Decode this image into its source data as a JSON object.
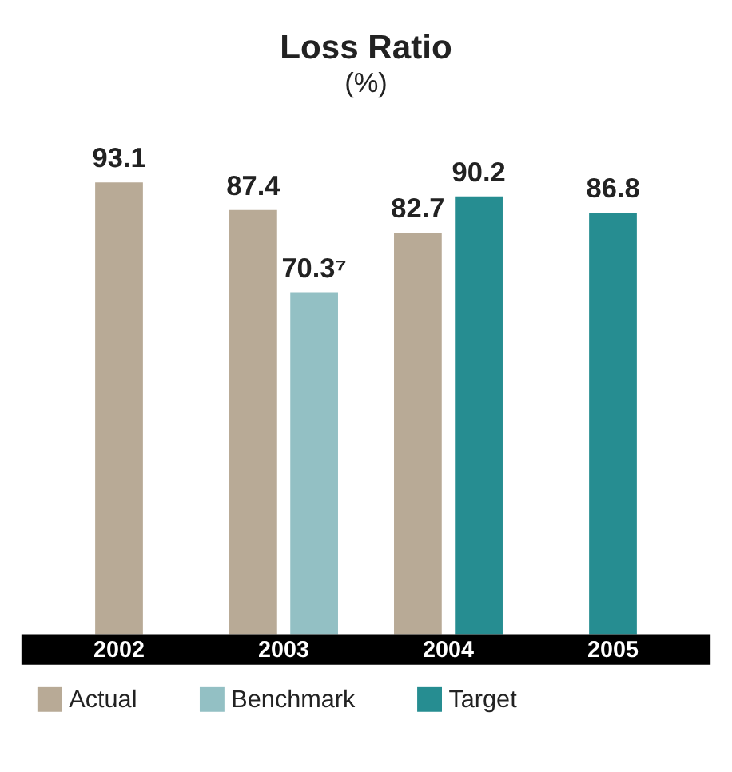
{
  "chart_data": {
    "type": "bar",
    "title": "Loss Ratio",
    "subtitle": "(%)",
    "categories": [
      "2002",
      "2003",
      "2004",
      "2005"
    ],
    "series": [
      {
        "name": "Actual",
        "color": "#b8aa96",
        "values": [
          93.1,
          87.4,
          82.7,
          null
        ],
        "value_labels": [
          "93.1",
          "87.4",
          "82.7",
          null
        ]
      },
      {
        "name": "Benchmark",
        "color": "#93c0c4",
        "values": [
          null,
          70.3,
          null,
          null
        ],
        "value_labels": [
          null,
          "70.3⁷",
          null,
          null
        ]
      },
      {
        "name": "Target",
        "color": "#268d91",
        "values": [
          null,
          null,
          90.2,
          86.8
        ],
        "value_labels": [
          null,
          null,
          "90.2",
          "86.8"
        ]
      }
    ],
    "data_labels": true,
    "legend": "bottom",
    "grid": false
  }
}
